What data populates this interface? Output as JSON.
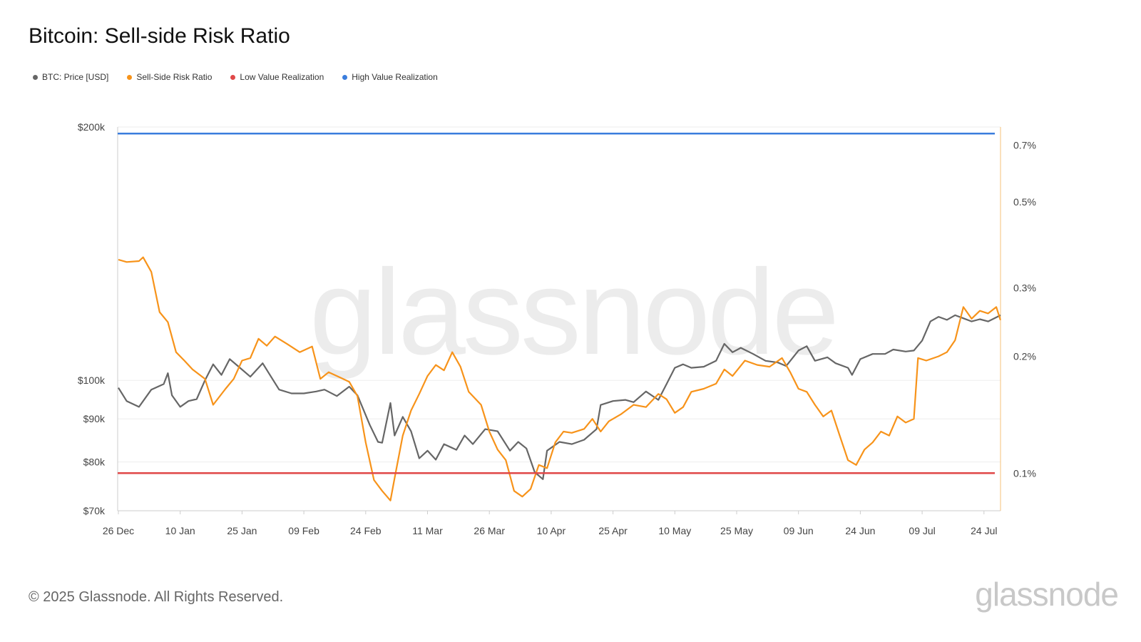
{
  "title": "Bitcoin: Sell-side Risk Ratio",
  "legend": [
    {
      "label": "BTC: Price [USD]",
      "color": "#666666"
    },
    {
      "label": "Sell-Side Risk Ratio",
      "color": "#f7931a"
    },
    {
      "label": "Low Value Realization",
      "color": "#e04848"
    },
    {
      "label": "High Value Realization",
      "color": "#3b7ddd"
    }
  ],
  "watermark": "glassnode",
  "footer": {
    "copyright": "© 2025 Glassnode. All Rights Reserved.",
    "logo": "glassnode"
  },
  "chart_data": {
    "type": "line",
    "title": "Bitcoin: Sell-side Risk Ratio",
    "x_start": "2024-12-26",
    "x_ticks": [
      "26 Dec",
      "10 Jan",
      "25 Jan",
      "09 Feb",
      "24 Feb",
      "11 Mar",
      "26 Mar",
      "10 Apr",
      "25 Apr",
      "10 May",
      "25 May",
      "09 Jun",
      "24 Jun",
      "09 Jul",
      "24 Jul"
    ],
    "y_left": {
      "scale": "log",
      "range": [
        70000,
        200000
      ],
      "ticks": [
        200000,
        100000,
        90000,
        80000,
        70000
      ],
      "tick_labels": [
        "$200k",
        "$100k",
        "$90k",
        "$80k",
        "$70k"
      ]
    },
    "y_right": {
      "scale": "log",
      "range": [
        0.08,
        0.78
      ],
      "ticks": [
        0.7,
        0.5,
        0.3,
        0.2,
        0.1
      ],
      "tick_labels": [
        "0.7%",
        "0.5%",
        "0.3%",
        "0.2%",
        "0.1%"
      ]
    },
    "grid": true,
    "series": [
      {
        "name": "BTC: Price [USD]",
        "axis": "left",
        "color": "#666666",
        "points": [
          [
            "2024-12-26",
            98000
          ],
          [
            "2024-12-28",
            94500
          ],
          [
            "2024-12-31",
            93000
          ],
          [
            "2025-01-03",
            97500
          ],
          [
            "2025-01-06",
            99000
          ],
          [
            "2025-01-07",
            102000
          ],
          [
            "2025-01-08",
            96000
          ],
          [
            "2025-01-10",
            93000
          ],
          [
            "2025-01-12",
            94500
          ],
          [
            "2025-01-14",
            95000
          ],
          [
            "2025-01-16",
            100000
          ],
          [
            "2025-01-18",
            104500
          ],
          [
            "2025-01-20",
            101500
          ],
          [
            "2025-01-22",
            106000
          ],
          [
            "2025-01-24",
            104000
          ],
          [
            "2025-01-27",
            101000
          ],
          [
            "2025-01-30",
            104800
          ],
          [
            "2025-02-03",
            97500
          ],
          [
            "2025-02-06",
            96500
          ],
          [
            "2025-02-09",
            96500
          ],
          [
            "2025-02-12",
            97000
          ],
          [
            "2025-02-14",
            97500
          ],
          [
            "2025-02-17",
            95800
          ],
          [
            "2025-02-20",
            98300
          ],
          [
            "2025-02-22",
            96000
          ],
          [
            "2025-02-25",
            88500
          ],
          [
            "2025-02-27",
            84500
          ],
          [
            "2025-02-28",
            84300
          ],
          [
            "2025-03-02",
            94000
          ],
          [
            "2025-03-03",
            86000
          ],
          [
            "2025-03-05",
            90500
          ],
          [
            "2025-03-07",
            87000
          ],
          [
            "2025-03-09",
            80800
          ],
          [
            "2025-03-11",
            82500
          ],
          [
            "2025-03-13",
            80500
          ],
          [
            "2025-03-15",
            84000
          ],
          [
            "2025-03-18",
            82700
          ],
          [
            "2025-03-20",
            86000
          ],
          [
            "2025-03-22",
            84000
          ],
          [
            "2025-03-25",
            87500
          ],
          [
            "2025-03-28",
            87000
          ],
          [
            "2025-03-31",
            82500
          ],
          [
            "2025-04-02",
            84500
          ],
          [
            "2025-04-04",
            83000
          ],
          [
            "2025-04-06",
            77800
          ],
          [
            "2025-04-08",
            76300
          ],
          [
            "2025-04-09",
            82500
          ],
          [
            "2025-04-12",
            84500
          ],
          [
            "2025-04-15",
            84000
          ],
          [
            "2025-04-18",
            85000
          ],
          [
            "2025-04-21",
            87500
          ],
          [
            "2025-04-22",
            93500
          ],
          [
            "2025-04-25",
            94500
          ],
          [
            "2025-04-28",
            94800
          ],
          [
            "2025-04-30",
            94200
          ],
          [
            "2025-05-03",
            97000
          ],
          [
            "2025-05-06",
            94800
          ],
          [
            "2025-05-08",
            99000
          ],
          [
            "2025-05-10",
            103500
          ],
          [
            "2025-05-12",
            104500
          ],
          [
            "2025-05-14",
            103500
          ],
          [
            "2025-05-17",
            103800
          ],
          [
            "2025-05-20",
            105500
          ],
          [
            "2025-05-22",
            110500
          ],
          [
            "2025-05-24",
            108000
          ],
          [
            "2025-05-26",
            109300
          ],
          [
            "2025-05-29",
            107500
          ],
          [
            "2025-06-01",
            105500
          ],
          [
            "2025-06-04",
            105000
          ],
          [
            "2025-06-06",
            104000
          ],
          [
            "2025-06-09",
            108500
          ],
          [
            "2025-06-11",
            109800
          ],
          [
            "2025-06-13",
            105500
          ],
          [
            "2025-06-16",
            106500
          ],
          [
            "2025-06-18",
            104800
          ],
          [
            "2025-06-21",
            103500
          ],
          [
            "2025-06-22",
            101500
          ],
          [
            "2025-06-24",
            106000
          ],
          [
            "2025-06-27",
            107500
          ],
          [
            "2025-06-30",
            107500
          ],
          [
            "2025-07-02",
            108800
          ],
          [
            "2025-07-05",
            108200
          ],
          [
            "2025-07-07",
            108500
          ],
          [
            "2025-07-09",
            111500
          ],
          [
            "2025-07-11",
            117500
          ],
          [
            "2025-07-13",
            119000
          ],
          [
            "2025-07-15",
            118000
          ],
          [
            "2025-07-17",
            119500
          ],
          [
            "2025-07-19",
            118500
          ],
          [
            "2025-07-21",
            117500
          ],
          [
            "2025-07-23",
            118200
          ],
          [
            "2025-07-25",
            117500
          ],
          [
            "2025-07-27",
            118800
          ],
          [
            "2025-07-28",
            119500
          ]
        ]
      },
      {
        "name": "Sell-Side Risk Ratio",
        "axis": "right",
        "color": "#f7931a",
        "points": [
          [
            "2024-12-26",
            0.355
          ],
          [
            "2024-12-28",
            0.35
          ],
          [
            "2024-12-31",
            0.352
          ],
          [
            "2025-01-01",
            0.36
          ],
          [
            "2025-01-03",
            0.33
          ],
          [
            "2025-01-05",
            0.26
          ],
          [
            "2025-01-07",
            0.245
          ],
          [
            "2025-01-09",
            0.205
          ],
          [
            "2025-01-11",
            0.195
          ],
          [
            "2025-01-13",
            0.185
          ],
          [
            "2025-01-16",
            0.175
          ],
          [
            "2025-01-18",
            0.15
          ],
          [
            "2025-01-21",
            0.165
          ],
          [
            "2025-01-23",
            0.175
          ],
          [
            "2025-01-25",
            0.195
          ],
          [
            "2025-01-27",
            0.198
          ],
          [
            "2025-01-29",
            0.222
          ],
          [
            "2025-01-31",
            0.213
          ],
          [
            "2025-02-02",
            0.225
          ],
          [
            "2025-02-05",
            0.215
          ],
          [
            "2025-02-08",
            0.205
          ],
          [
            "2025-02-11",
            0.212
          ],
          [
            "2025-02-13",
            0.175
          ],
          [
            "2025-02-15",
            0.182
          ],
          [
            "2025-02-18",
            0.176
          ],
          [
            "2025-02-20",
            0.172
          ],
          [
            "2025-02-22",
            0.158
          ],
          [
            "2025-02-24",
            0.12
          ],
          [
            "2025-02-26",
            0.096
          ],
          [
            "2025-02-28",
            0.09
          ],
          [
            "2025-03-02",
            0.085
          ],
          [
            "2025-03-03",
            0.097
          ],
          [
            "2025-03-05",
            0.125
          ],
          [
            "2025-03-07",
            0.145
          ],
          [
            "2025-03-09",
            0.16
          ],
          [
            "2025-03-11",
            0.178
          ],
          [
            "2025-03-13",
            0.19
          ],
          [
            "2025-03-15",
            0.184
          ],
          [
            "2025-03-17",
            0.205
          ],
          [
            "2025-03-19",
            0.188
          ],
          [
            "2025-03-21",
            0.162
          ],
          [
            "2025-03-24",
            0.15
          ],
          [
            "2025-03-26",
            0.128
          ],
          [
            "2025-03-28",
            0.115
          ],
          [
            "2025-03-30",
            0.108
          ],
          [
            "2025-04-01",
            0.09
          ],
          [
            "2025-04-03",
            0.087
          ],
          [
            "2025-04-05",
            0.091
          ],
          [
            "2025-04-07",
            0.105
          ],
          [
            "2025-04-09",
            0.103
          ],
          [
            "2025-04-11",
            0.12
          ],
          [
            "2025-04-13",
            0.128
          ],
          [
            "2025-04-15",
            0.127
          ],
          [
            "2025-04-18",
            0.13
          ],
          [
            "2025-04-20",
            0.138
          ],
          [
            "2025-04-22",
            0.128
          ],
          [
            "2025-04-24",
            0.136
          ],
          [
            "2025-04-27",
            0.142
          ],
          [
            "2025-04-30",
            0.15
          ],
          [
            "2025-05-03",
            0.148
          ],
          [
            "2025-05-06",
            0.16
          ],
          [
            "2025-05-08",
            0.155
          ],
          [
            "2025-05-10",
            0.143
          ],
          [
            "2025-05-12",
            0.148
          ],
          [
            "2025-05-14",
            0.162
          ],
          [
            "2025-05-17",
            0.165
          ],
          [
            "2025-05-20",
            0.17
          ],
          [
            "2025-05-22",
            0.185
          ],
          [
            "2025-05-24",
            0.178
          ],
          [
            "2025-05-27",
            0.195
          ],
          [
            "2025-05-30",
            0.19
          ],
          [
            "2025-06-02",
            0.188
          ],
          [
            "2025-06-05",
            0.198
          ],
          [
            "2025-06-07",
            0.182
          ],
          [
            "2025-06-09",
            0.165
          ],
          [
            "2025-06-11",
            0.162
          ],
          [
            "2025-06-13",
            0.15
          ],
          [
            "2025-06-15",
            0.14
          ],
          [
            "2025-06-17",
            0.145
          ],
          [
            "2025-06-19",
            0.125
          ],
          [
            "2025-06-21",
            0.108
          ],
          [
            "2025-06-23",
            0.105
          ],
          [
            "2025-06-25",
            0.115
          ],
          [
            "2025-06-27",
            0.12
          ],
          [
            "2025-06-29",
            0.128
          ],
          [
            "2025-07-01",
            0.125
          ],
          [
            "2025-07-03",
            0.14
          ],
          [
            "2025-07-05",
            0.135
          ],
          [
            "2025-07-07",
            0.138
          ],
          [
            "2025-07-08",
            0.198
          ],
          [
            "2025-07-10",
            0.195
          ],
          [
            "2025-07-13",
            0.2
          ],
          [
            "2025-07-15",
            0.205
          ],
          [
            "2025-07-17",
            0.22
          ],
          [
            "2025-07-19",
            0.268
          ],
          [
            "2025-07-21",
            0.25
          ],
          [
            "2025-07-23",
            0.262
          ],
          [
            "2025-07-25",
            0.258
          ],
          [
            "2025-07-27",
            0.268
          ],
          [
            "2025-07-28",
            0.248
          ]
        ]
      },
      {
        "name": "Low Value Realization",
        "axis": "right",
        "color": "#e04848",
        "value": 0.1
      },
      {
        "name": "High Value Realization",
        "axis": "right",
        "color": "#3b7ddd",
        "value": 0.75
      }
    ]
  }
}
